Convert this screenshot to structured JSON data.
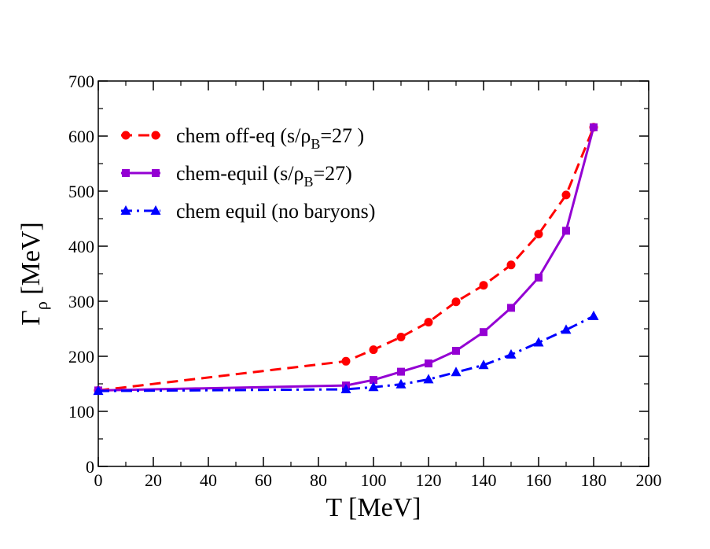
{
  "chart_data": {
    "type": "line",
    "title": "",
    "xlabel": "T [MeV]",
    "ylabel": {
      "main": "Γ",
      "sub": "ρ",
      "rest": " [MeV]"
    },
    "xlim": [
      0,
      200
    ],
    "ylim": [
      0,
      700
    ],
    "xticks": [
      0,
      20,
      40,
      60,
      80,
      100,
      120,
      140,
      160,
      180,
      200
    ],
    "yticks": [
      0,
      100,
      200,
      300,
      400,
      500,
      600,
      700
    ],
    "grid": false,
    "legend_position": "top-left",
    "series": [
      {
        "name": "chem off-eq (s/ρB=27 )",
        "legend_parts": {
          "pre": "chem off-eq (s/ρ",
          "sub": "B",
          "post": "=27 )"
        },
        "color": "#ff0000",
        "line_style": "dashed",
        "marker": "circle",
        "x": [
          0,
          90,
          100,
          110,
          120,
          130,
          140,
          150,
          160,
          170,
          180
        ],
        "y": [
          138,
          191,
          212,
          235,
          262,
          299,
          329,
          366,
          422,
          493,
          616
        ]
      },
      {
        "name": "chem-equil (s/ρB=27)",
        "legend_parts": {
          "pre": "chem-equil (s/ρ",
          "sub": "B",
          "post": "=27)"
        },
        "color": "#9400d3",
        "line_style": "solid",
        "marker": "square",
        "x": [
          0,
          90,
          100,
          110,
          120,
          130,
          140,
          150,
          160,
          170,
          180
        ],
        "y": [
          138,
          147,
          157,
          172,
          187,
          210,
          244,
          288,
          343,
          428,
          616
        ]
      },
      {
        "name": "chem equil  (no baryons)",
        "legend_parts": {
          "pre": "chem equil  (no baryons)",
          "sub": "",
          "post": ""
        },
        "color": "#0000ff",
        "line_style": "dashdot",
        "marker": "triangle",
        "x": [
          0,
          90,
          100,
          110,
          120,
          130,
          140,
          150,
          160,
          170,
          180
        ],
        "y": [
          137,
          140,
          144,
          149,
          158,
          171,
          184,
          203,
          225,
          248,
          273
        ]
      }
    ]
  }
}
